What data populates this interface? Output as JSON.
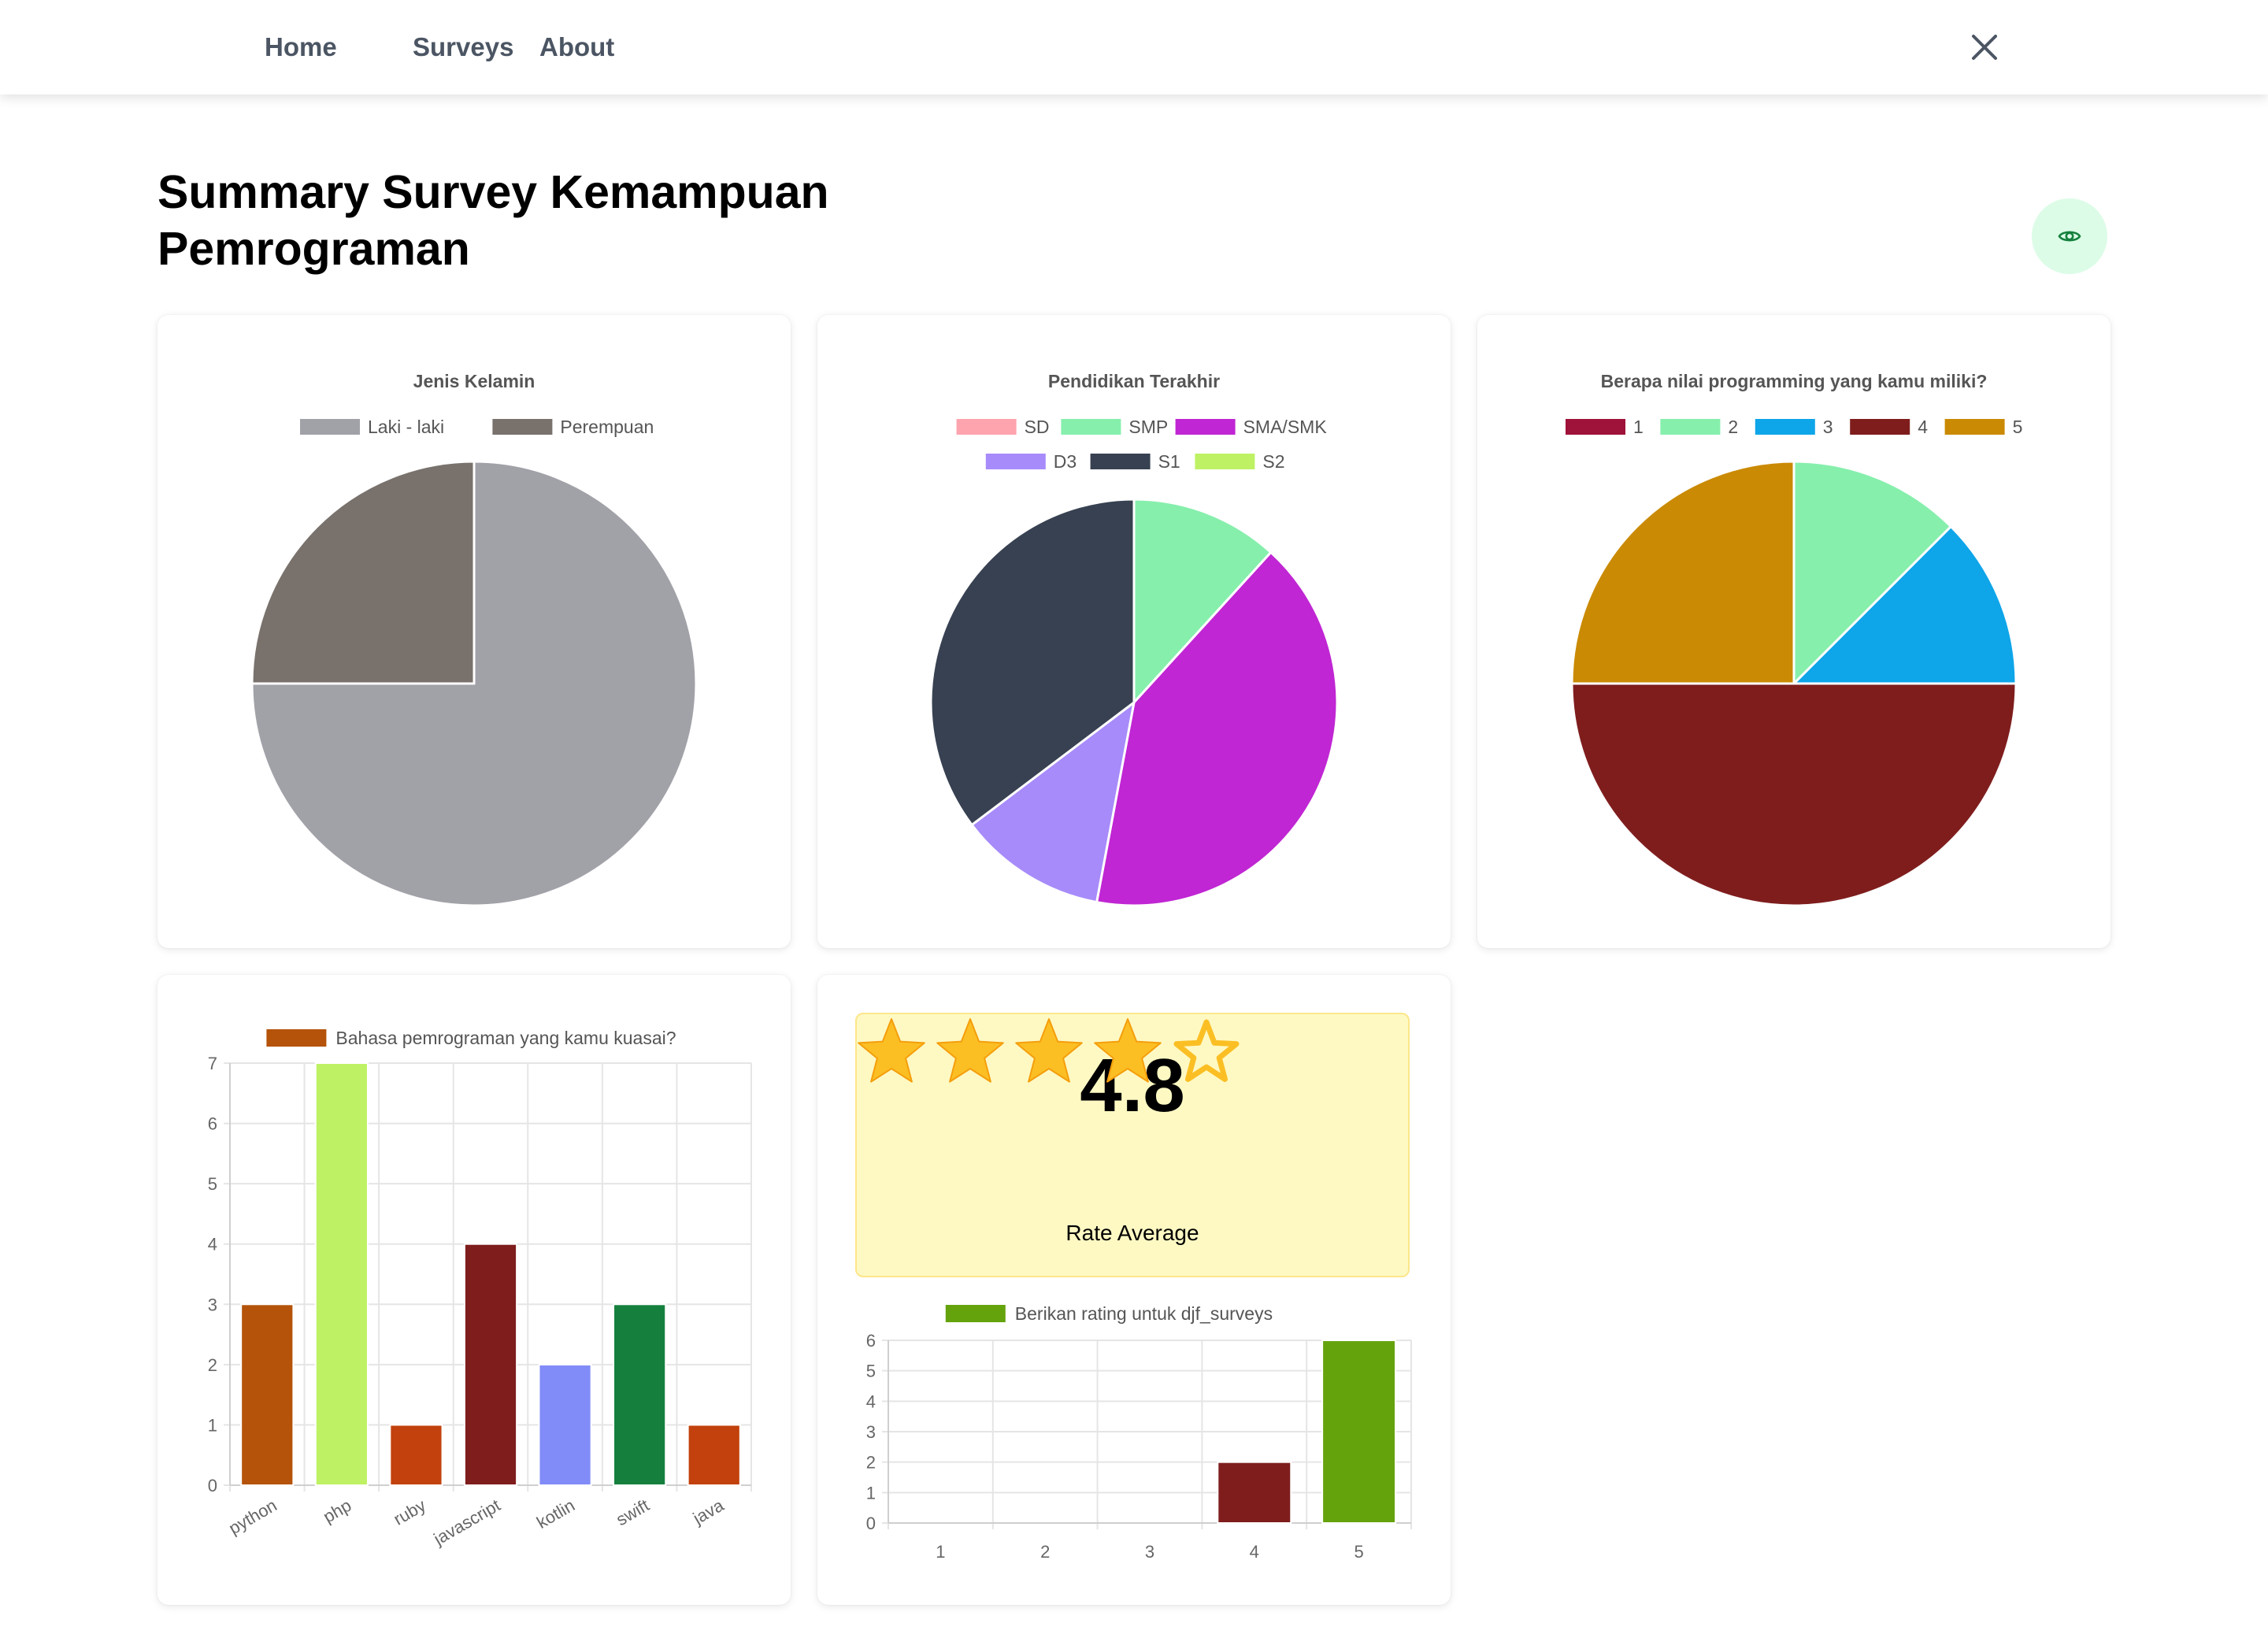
{
  "nav": {
    "home": "Home",
    "surveys": "Surveys",
    "about": "About"
  },
  "page": {
    "title_line1": "Summary Survey Kemampuan",
    "title_line2": "Pemrograman"
  },
  "rating": {
    "value": "4.8",
    "label": "Rate Average",
    "filled_stars": 4,
    "total_stars": 5
  },
  "chart_data": [
    {
      "type": "pie",
      "title": "Jenis Kelamin",
      "labels": [
        "Laki - laki",
        "Perempuan"
      ],
      "values": [
        3,
        1
      ],
      "colors": [
        "#a1a1a8",
        "#78716c"
      ]
    },
    {
      "type": "pie",
      "title": "Pendidikan Terakhir",
      "labels": [
        "SD",
        "SMP",
        "SMA/SMK",
        "D3",
        "S1",
        "S2"
      ],
      "values": [
        0,
        1,
        3.5,
        1,
        3,
        0
      ],
      "colors": [
        "#fda4af",
        "#86efac",
        "#c026d3",
        "#a78bfa",
        "#374151",
        "#bef264"
      ]
    },
    {
      "type": "pie",
      "title": "Berapa nilai programming yang kamu miliki?",
      "labels": [
        "1",
        "2",
        "3",
        "4",
        "5"
      ],
      "values": [
        0,
        1,
        1,
        4,
        2
      ],
      "colors": [
        "#9f1239",
        "#86efac",
        "#0ea5e9",
        "#7f1d1d",
        "#ca8a04"
      ]
    },
    {
      "type": "bar",
      "legend": "Bahasa pemrograman yang kamu kuasai?",
      "legend_color": "#b45309",
      "categories": [
        "python",
        "php",
        "ruby",
        "javascript",
        "kotlin",
        "swift",
        "java"
      ],
      "values": [
        3,
        7,
        1,
        4,
        2,
        3,
        1
      ],
      "colors": [
        "#b45309",
        "#bef264",
        "#c2410c",
        "#7f1d1d",
        "#818cf8",
        "#15803d",
        "#c2410c"
      ],
      "ylim": [
        0,
        7
      ],
      "yticks": [
        "0",
        "1",
        "2",
        "3",
        "4",
        "5",
        "6",
        "7"
      ]
    },
    {
      "type": "bar",
      "legend": "Berikan rating untuk djf_surveys",
      "legend_color": "#65a30d",
      "categories": [
        "1",
        "2",
        "3",
        "4",
        "5"
      ],
      "values": [
        0,
        0,
        0,
        2,
        6
      ],
      "colors": [
        "#65a30d",
        "#65a30d",
        "#65a30d",
        "#7f1d1d",
        "#65a30d"
      ],
      "ylim": [
        0,
        6
      ],
      "yticks": [
        "0",
        "1",
        "2",
        "3",
        "4",
        "5",
        "6"
      ]
    }
  ]
}
